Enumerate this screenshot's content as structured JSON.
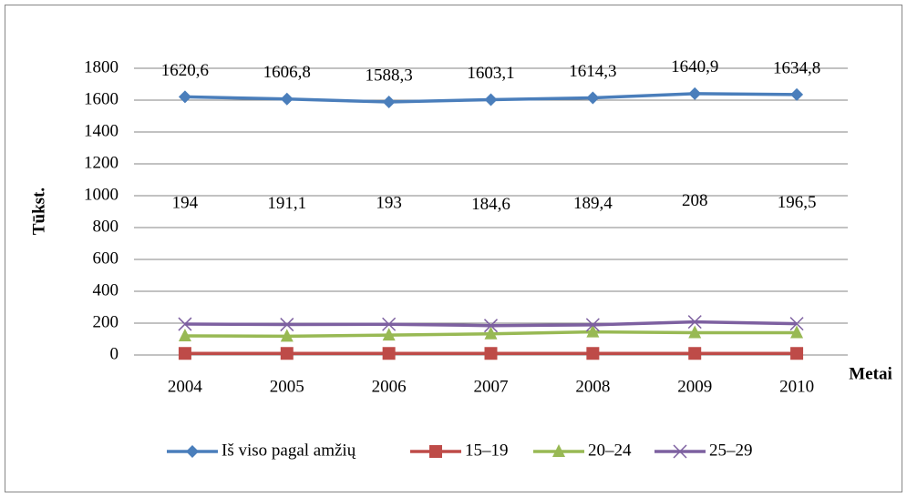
{
  "chart_data": {
    "type": "line",
    "x_label": "Metai",
    "y_label": "Tūkst.",
    "categories": [
      "2004",
      "2005",
      "2006",
      "2007",
      "2008",
      "2009",
      "2010"
    ],
    "series": [
      {
        "name": "Iš viso pagal amžių",
        "color": "#4a7ebb",
        "marker": "diamond",
        "values": [
          1620.6,
          1606.8,
          1588.3,
          1603.1,
          1614.3,
          1640.9,
          1634.8
        ],
        "value_labels": [
          "1620,6",
          "1606,8",
          "1588,3",
          "1603,1",
          "1614,3",
          "1640,9",
          "1634,8"
        ]
      },
      {
        "name": "15–19",
        "color": "#be4b48",
        "marker": "square",
        "values": [
          10,
          10,
          10,
          10,
          10,
          10,
          10
        ]
      },
      {
        "name": "20–24",
        "color": "#98b954",
        "marker": "triangle",
        "values": [
          120,
          118,
          125,
          133,
          145,
          140,
          140
        ]
      },
      {
        "name": "25–29",
        "color": "#7d60a0",
        "marker": "x",
        "values": [
          194,
          191.1,
          193,
          184.6,
          189.4,
          208,
          196.5
        ],
        "value_labels": [
          "194",
          "191,1",
          "193",
          "184,6",
          "189,4",
          "208",
          "196,5"
        ]
      }
    ],
    "ylim": [
      0,
      1800
    ],
    "yticks": [
      0,
      200,
      400,
      600,
      800,
      1000,
      1200,
      1400,
      1600,
      1800
    ],
    "grid": true,
    "legend": "bottom"
  }
}
